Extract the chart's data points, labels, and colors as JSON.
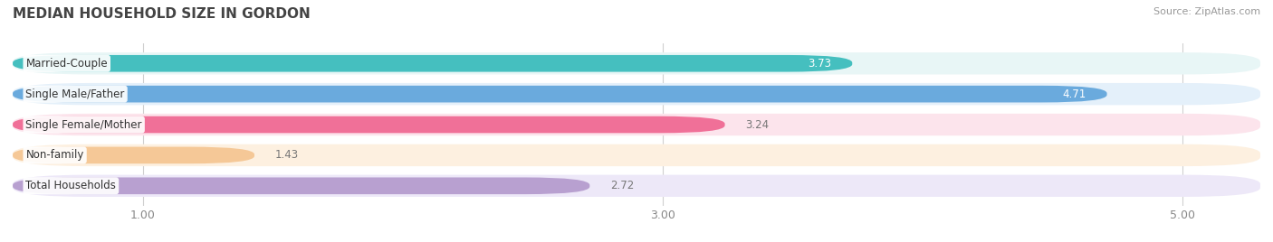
{
  "title": "MEDIAN HOUSEHOLD SIZE IN GORDON",
  "source": "Source: ZipAtlas.com",
  "categories": [
    "Married-Couple",
    "Single Male/Father",
    "Single Female/Mother",
    "Non-family",
    "Total Households"
  ],
  "values": [
    3.73,
    4.71,
    3.24,
    1.43,
    2.72
  ],
  "bar_colors": [
    "#45BFBF",
    "#6AAADD",
    "#F07098",
    "#F5C897",
    "#B8A0D0"
  ],
  "bar_bg_colors": [
    "#E8F6F6",
    "#E4F0FA",
    "#FCE4EC",
    "#FDF0E0",
    "#EDE8F8"
  ],
  "xlim": [
    0.5,
    5.3
  ],
  "xmin": 0.5,
  "xmax": 5.3,
  "xticks": [
    1.0,
    3.0,
    5.0
  ],
  "background_color": "#f7f7f7",
  "title_color": "#444444",
  "label_color": "#555555",
  "source_color": "#999999",
  "value_colors": [
    "#ffffff",
    "#ffffff",
    "#777777",
    "#777777",
    "#777777"
  ],
  "value_inside": [
    true,
    true,
    false,
    false,
    false
  ]
}
